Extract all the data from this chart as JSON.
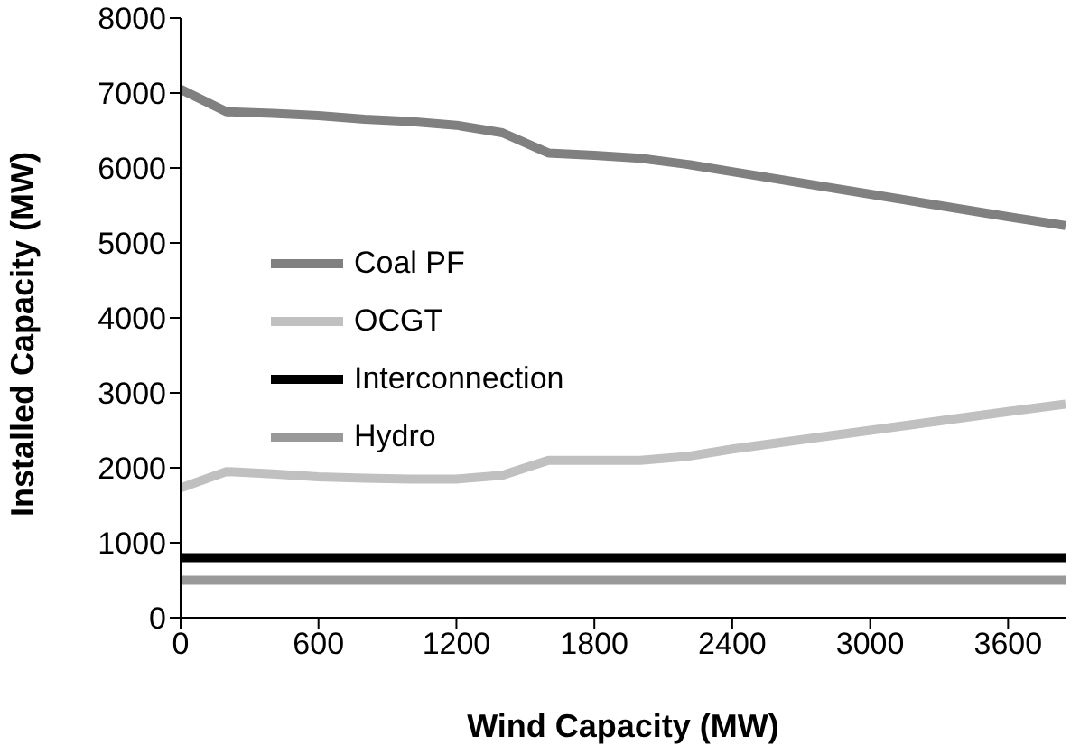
{
  "chart_data": {
    "type": "line",
    "xlabel": "Wind Capacity (MW)",
    "ylabel": "Installed Capacity (MW)",
    "x": [
      0,
      200,
      400,
      600,
      800,
      1000,
      1200,
      1400,
      1600,
      1800,
      2000,
      2200,
      2400,
      3000,
      3600,
      3850
    ],
    "xlim": [
      0,
      3850
    ],
    "xticks": [
      0,
      600,
      1200,
      1800,
      2400,
      3000,
      3600
    ],
    "ylim": [
      0,
      8000
    ],
    "yticks": [
      0,
      1000,
      2000,
      3000,
      4000,
      5000,
      6000,
      7000,
      8000
    ],
    "series": [
      {
        "name": "Coal PF",
        "color": "#808080",
        "values": [
          7050,
          6750,
          6730,
          6700,
          6650,
          6620,
          6570,
          6470,
          6200,
          6170,
          6130,
          6050,
          5950,
          5650,
          5350,
          5230
        ]
      },
      {
        "name": "OCGT",
        "color": "#c0c0c0",
        "values": [
          1730,
          1950,
          1920,
          1880,
          1860,
          1850,
          1850,
          1900,
          2100,
          2100,
          2100,
          2150,
          2250,
          2500,
          2750,
          2850
        ]
      },
      {
        "name": "Interconnection",
        "color": "#000000",
        "values": [
          800,
          800,
          800,
          800,
          800,
          800,
          800,
          800,
          800,
          800,
          800,
          800,
          800,
          800,
          800,
          800
        ]
      },
      {
        "name": "Hydro",
        "color": "#999999",
        "values": [
          500,
          500,
          500,
          500,
          500,
          500,
          500,
          500,
          500,
          500,
          500,
          500,
          500,
          500,
          500,
          500
        ]
      }
    ],
    "grid": false,
    "legend": "left",
    "marker": "none",
    "line_style": "solid"
  }
}
